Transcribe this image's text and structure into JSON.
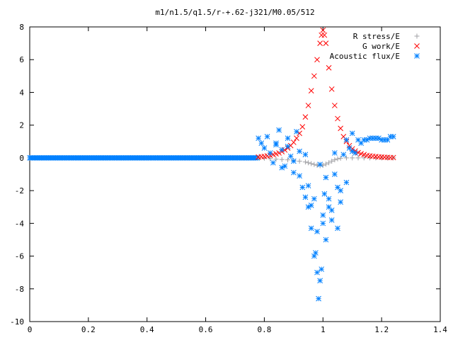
{
  "chart_data": {
    "type": "scatter",
    "title": "m1/n1.5/q1.5/r-+.62-j321/M0.05/512",
    "xlabel": "",
    "ylabel": "",
    "xlim": [
      0,
      1.4
    ],
    "ylim": [
      -10,
      8
    ],
    "x_ticks": [
      "0",
      "0.2",
      "0.4",
      "0.6",
      "0.8",
      "1",
      "1.2",
      "1.4"
    ],
    "y_ticks": [
      "-10",
      "-8",
      "-6",
      "-4",
      "-2",
      "0",
      "2",
      "4",
      "6",
      "8"
    ],
    "grid": false,
    "legend_position": "top-right",
    "series": [
      {
        "name": "R stress/E",
        "marker": "plus",
        "color": "#a0a0a4",
        "x": [
          0.78,
          0.8,
          0.82,
          0.84,
          0.86,
          0.88,
          0.9,
          0.92,
          0.94,
          0.95,
          0.96,
          0.97,
          0.98,
          0.99,
          1.0,
          1.01,
          1.02,
          1.03,
          1.04,
          1.05,
          1.06,
          1.08,
          1.1,
          1.12,
          1.14,
          1.16,
          1.18,
          1.2,
          1.22,
          1.24
        ],
        "y": [
          0,
          -0.02,
          -0.05,
          -0.08,
          -0.1,
          -0.12,
          -0.15,
          -0.2,
          -0.25,
          -0.3,
          -0.35,
          -0.4,
          -0.45,
          -0.48,
          -0.45,
          -0.38,
          -0.3,
          -0.2,
          -0.12,
          -0.06,
          -0.02,
          0,
          0,
          0,
          0,
          0,
          0,
          0,
          0,
          0
        ]
      },
      {
        "name": "G work/E",
        "marker": "cross",
        "color": "#ff0000",
        "x": [
          0.78,
          0.79,
          0.8,
          0.81,
          0.82,
          0.83,
          0.84,
          0.85,
          0.86,
          0.87,
          0.88,
          0.89,
          0.9,
          0.91,
          0.92,
          0.93,
          0.94,
          0.95,
          0.96,
          0.97,
          0.98,
          0.99,
          0.995,
          1.0,
          1.005,
          1.01,
          1.02,
          1.03,
          1.04,
          1.05,
          1.06,
          1.07,
          1.08,
          1.09,
          1.1,
          1.11,
          1.12,
          1.13,
          1.14,
          1.15,
          1.16,
          1.17,
          1.18,
          1.19,
          1.2,
          1.21,
          1.22,
          1.23,
          1.24
        ],
        "y": [
          0.05,
          0.07,
          0.09,
          0.12,
          0.15,
          0.2,
          0.25,
          0.3,
          0.38,
          0.48,
          0.6,
          0.75,
          0.95,
          1.2,
          1.5,
          1.9,
          2.5,
          3.2,
          4.1,
          5.0,
          6.0,
          7.0,
          7.5,
          7.8,
          7.5,
          7.0,
          5.5,
          4.2,
          3.2,
          2.4,
          1.8,
          1.3,
          1.0,
          0.75,
          0.55,
          0.42,
          0.32,
          0.25,
          0.2,
          0.15,
          0.12,
          0.1,
          0.08,
          0.06,
          0.05,
          0.04,
          0.03,
          0.02,
          0.02
        ]
      },
      {
        "name": "Acoustic flux/E",
        "marker": "star",
        "color": "#0080ff",
        "x": [
          0.78,
          0.79,
          0.8,
          0.81,
          0.82,
          0.83,
          0.84,
          0.85,
          0.86,
          0.87,
          0.88,
          0.89,
          0.9,
          0.91,
          0.92,
          0.93,
          0.94,
          0.95,
          0.96,
          0.97,
          0.975,
          0.98,
          0.985,
          0.99,
          0.995,
          1.0,
          1.005,
          1.01,
          1.02,
          1.03,
          1.04,
          1.05,
          1.06,
          1.07,
          1.08,
          1.09,
          1.1,
          1.11,
          1.12,
          1.13,
          1.14,
          1.15,
          1.16,
          1.17,
          1.18,
          1.19,
          1.2,
          1.21,
          1.22,
          1.23,
          1.24,
          0.84,
          0.86,
          0.88,
          0.9,
          0.92,
          0.94,
          0.96,
          0.98,
          1.0,
          1.02,
          1.04,
          1.06,
          1.08,
          1.1,
          0.95,
          0.97,
          0.99,
          1.01,
          1.03,
          1.05
        ],
        "y": [
          1.2,
          0.9,
          0.6,
          1.3,
          0.3,
          -0.3,
          0.8,
          1.7,
          0.5,
          -0.5,
          1.2,
          0.1,
          -0.9,
          1.6,
          0.4,
          -1.8,
          -2.4,
          -3.0,
          -4.3,
          -6.0,
          -5.8,
          -7.0,
          -8.6,
          -7.5,
          -6.8,
          -3.5,
          -2.2,
          -1.2,
          -2.5,
          -3.8,
          -1.0,
          -4.3,
          -2.0,
          0.2,
          -1.5,
          0.6,
          1.5,
          0.3,
          1.1,
          0.9,
          1.1,
          1.1,
          1.2,
          1.2,
          1.2,
          1.2,
          1.1,
          1.1,
          1.1,
          1.3,
          1.3,
          0.9,
          -0.6,
          0.7,
          -0.2,
          -1.1,
          0.2,
          -2.9,
          -4.5,
          -4.0,
          -3.0,
          0.3,
          -2.7,
          1.1,
          0.4,
          -1.7,
          -2.5,
          -0.4,
          -5.0,
          -3.2,
          -1.8
        ]
      }
    ]
  }
}
